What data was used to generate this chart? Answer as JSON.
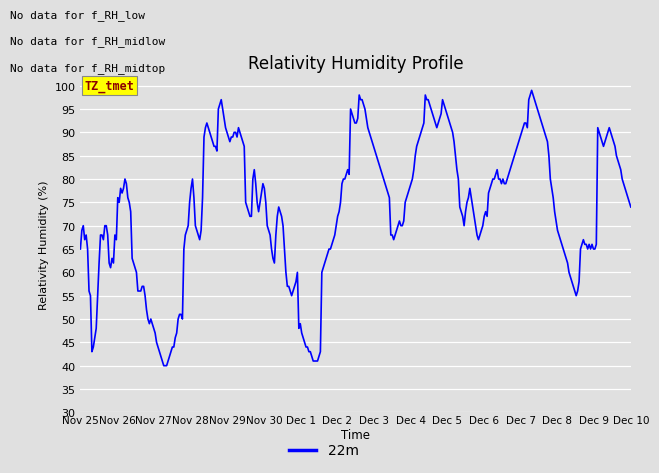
{
  "title": "Relativity Humidity Profile",
  "ylabel": "Relativity Humidity (%)",
  "xlabel": "Time",
  "ylim": [
    30,
    102
  ],
  "yticks": [
    30,
    35,
    40,
    45,
    50,
    55,
    60,
    65,
    70,
    75,
    80,
    85,
    90,
    95,
    100
  ],
  "line_color": "#0000FF",
  "line_width": 1.2,
  "bg_color": "#E0E0E0",
  "plot_bg_color": "#E0E0E0",
  "no_data_labels": [
    "No data for f_RH_low",
    "No data for f_RH_midlow",
    "No data for f_RH_midtop"
  ],
  "tz_label": "TZ_tmet",
  "legend_label": "22m",
  "x_tick_labels": [
    "Nov 25",
    "Nov 26",
    "Nov 27",
    "Nov 28",
    "Nov 29",
    "Nov 30",
    "Dec 1",
    "Dec 2",
    "Dec 3",
    "Dec 4",
    "Dec 5",
    "Dec 6",
    "Dec 7",
    "Dec 8",
    "Dec 9",
    "Dec 10"
  ],
  "rh_values": [
    65,
    69,
    70,
    67,
    68,
    65,
    56,
    55,
    43,
    44,
    46,
    48,
    55,
    62,
    68,
    68,
    67,
    70,
    70,
    68,
    62,
    61,
    63,
    62,
    68,
    67,
    76,
    75,
    78,
    77,
    78,
    80,
    79,
    76,
    75,
    73,
    63,
    62,
    61,
    60,
    56,
    56,
    56,
    57,
    57,
    55,
    52,
    50,
    49,
    50,
    49,
    48,
    47,
    45,
    44,
    43,
    42,
    41,
    40,
    40,
    40,
    41,
    42,
    43,
    44,
    44,
    46,
    47,
    50,
    51,
    51,
    50,
    65,
    68,
    69,
    70,
    75,
    78,
    80,
    76,
    70,
    69,
    68,
    67,
    69,
    76,
    89,
    91,
    92,
    91,
    90,
    89,
    88,
    87,
    87,
    86,
    95,
    96,
    97,
    95,
    93,
    91,
    90,
    89,
    88,
    89,
    89,
    90,
    90,
    89,
    91,
    90,
    89,
    88,
    87,
    75,
    74,
    73,
    72,
    72,
    80,
    82,
    79,
    75,
    73,
    75,
    77,
    79,
    78,
    75,
    70,
    69,
    68,
    65,
    63,
    62,
    68,
    72,
    74,
    73,
    72,
    70,
    65,
    60,
    57,
    57,
    56,
    55,
    56,
    57,
    58,
    60,
    48,
    49,
    47,
    46,
    45,
    44,
    44,
    43,
    43,
    42,
    41,
    41,
    41,
    41,
    42,
    43,
    60,
    61,
    62,
    63,
    64,
    65,
    65,
    66,
    67,
    68,
    70,
    72,
    73,
    75,
    79,
    80,
    80,
    81,
    82,
    81,
    95,
    94,
    93,
    92,
    92,
    93,
    98,
    97,
    97,
    96,
    95,
    93,
    91,
    90,
    89,
    88,
    87,
    86,
    85,
    84,
    83,
    82,
    81,
    80,
    79,
    78,
    77,
    76,
    68,
    68,
    67,
    68,
    69,
    70,
    71,
    70,
    70,
    71,
    75,
    76,
    77,
    78,
    79,
    80,
    82,
    85,
    87,
    88,
    89,
    90,
    91,
    92,
    98,
    97,
    97,
    96,
    95,
    94,
    93,
    92,
    91,
    92,
    93,
    94,
    97,
    96,
    95,
    94,
    93,
    92,
    91,
    90,
    88,
    85,
    82,
    80,
    74,
    73,
    72,
    70,
    73,
    75,
    76,
    78,
    76,
    74,
    72,
    70,
    68,
    67,
    68,
    69,
    70,
    72,
    73,
    72,
    77,
    78,
    79,
    80,
    80,
    81,
    82,
    80,
    80,
    79,
    80,
    79,
    79,
    80,
    81,
    82,
    83,
    84,
    85,
    86,
    87,
    88,
    89,
    90,
    91,
    92,
    92,
    91,
    97,
    98,
    99,
    98,
    97,
    96,
    95,
    94,
    93,
    92,
    91,
    90,
    89,
    88,
    85,
    80,
    78,
    76,
    73,
    71,
    69,
    68,
    67,
    66,
    65,
    64,
    63,
    62,
    60,
    59,
    58,
    57,
    56,
    55,
    56,
    58,
    65,
    66,
    67,
    66,
    66,
    65,
    66,
    65,
    66,
    65,
    65,
    66,
    91,
    90,
    89,
    88,
    87,
    88,
    89,
    90,
    91,
    90,
    89,
    88,
    87,
    85,
    84,
    83,
    82,
    80,
    79,
    78,
    77,
    76,
    75,
    74
  ]
}
